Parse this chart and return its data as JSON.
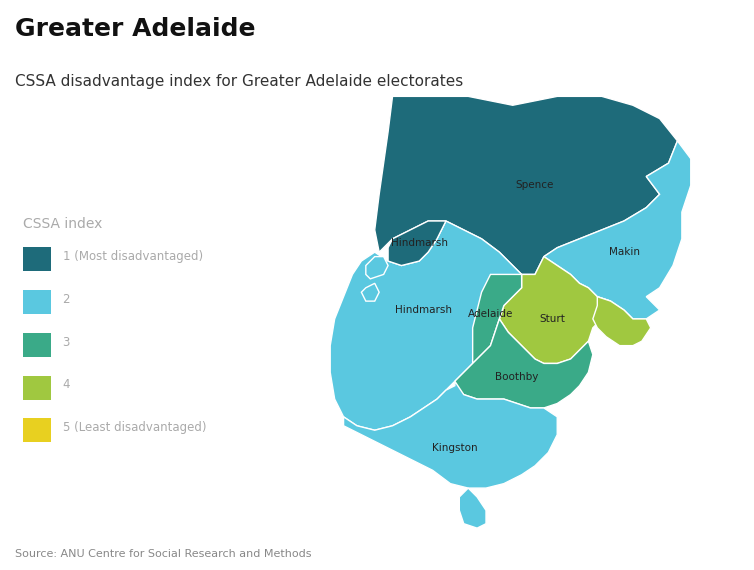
{
  "title": "Greater Adelaide",
  "subtitle": "CSSA disadvantage index for Greater Adelaide electorates",
  "source": "Source: ANU Centre for Social Research and Methods",
  "colors": {
    "1": "#1e6b7a",
    "2": "#5ac8e0",
    "3": "#3aaa88",
    "4": "#a0c840",
    "5": "#e8d020"
  },
  "legend_labels": {
    "1": "1 (Most disadvantaged)",
    "2": "2",
    "3": "3",
    "4": "4",
    "5": "5 (Least disadvantaged)"
  },
  "title_fontsize": 18,
  "subtitle_fontsize": 11,
  "source_fontsize": 8,
  "label_fontsize": 7.5,
  "legend_title_fontsize": 10,
  "legend_fontsize": 8.5,
  "bg_color": "#ffffff",
  "legend_text_color": "#aaaaaa"
}
